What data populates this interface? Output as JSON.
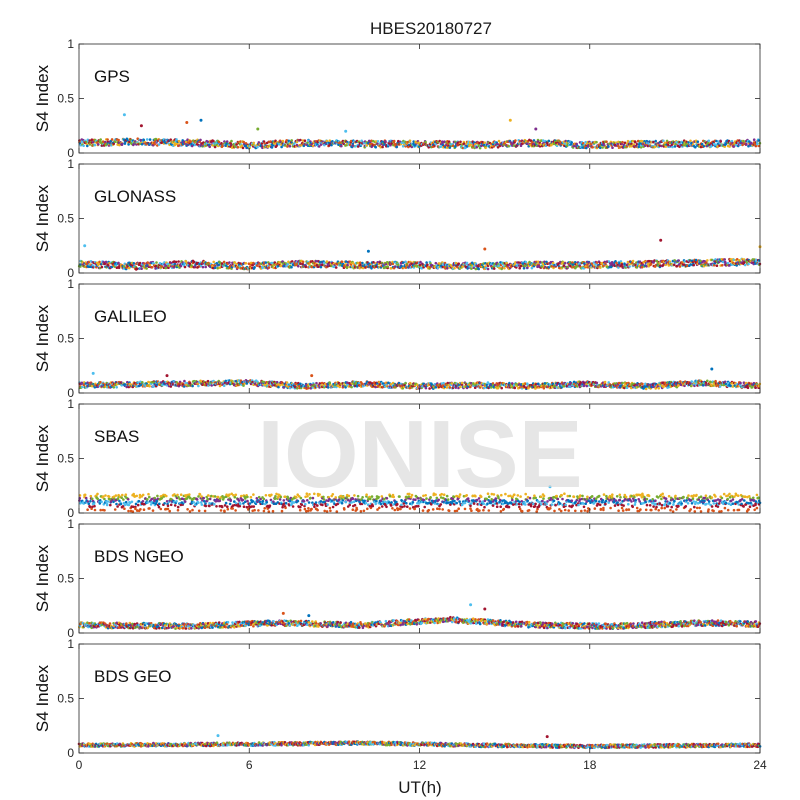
{
  "chart_data": {
    "type": "scatter",
    "title": "HBES20180727",
    "xlabel": "UT(h)",
    "ylabel": "S4 Index",
    "xlim": [
      0,
      24
    ],
    "ylim": [
      0,
      1
    ],
    "x_ticks": [
      "0",
      "6",
      "12",
      "18",
      "24"
    ],
    "y_ticks": [
      "0",
      "0.5",
      "1"
    ],
    "grid": false,
    "watermark": "IONISE",
    "series_colors": [
      "#0072bd",
      "#d95319",
      "#edb120",
      "#7e2f8e",
      "#77ac30",
      "#4dbeee",
      "#a2142f"
    ],
    "panels": [
      {
        "label": "GPS",
        "baseline": [
          [
            0,
            0.09
          ],
          [
            2,
            0.1
          ],
          [
            4,
            0.09
          ],
          [
            6,
            0.07
          ],
          [
            8,
            0.09
          ],
          [
            10,
            0.08
          ],
          [
            12,
            0.08
          ],
          [
            14,
            0.07
          ],
          [
            16,
            0.09
          ],
          [
            18,
            0.07
          ],
          [
            20,
            0.08
          ],
          [
            22,
            0.08
          ],
          [
            24,
            0.09
          ]
        ],
        "spread": 0.06,
        "highlights": [
          [
            1.6,
            0.35
          ],
          [
            2.2,
            0.25
          ],
          [
            4.3,
            0.3
          ],
          [
            3.8,
            0.28
          ],
          [
            15.2,
            0.3
          ],
          [
            16.1,
            0.22
          ],
          [
            6.3,
            0.22
          ],
          [
            9.4,
            0.2
          ]
        ]
      },
      {
        "label": "GLONASS",
        "baseline": [
          [
            0,
            0.08
          ],
          [
            2,
            0.06
          ],
          [
            4,
            0.08
          ],
          [
            6,
            0.06
          ],
          [
            8,
            0.08
          ],
          [
            10,
            0.07
          ],
          [
            12,
            0.07
          ],
          [
            14,
            0.06
          ],
          [
            16,
            0.07
          ],
          [
            18,
            0.07
          ],
          [
            20,
            0.08
          ],
          [
            22,
            0.09
          ],
          [
            24,
            0.1
          ]
        ],
        "spread": 0.06,
        "highlights": [
          [
            0.2,
            0.25
          ],
          [
            20.5,
            0.3
          ],
          [
            10.2,
            0.2
          ],
          [
            14.3,
            0.22
          ],
          [
            24,
            0.24
          ]
        ]
      },
      {
        "label": "GALILEO",
        "baseline": [
          [
            0,
            0.07
          ],
          [
            3,
            0.08
          ],
          [
            6,
            0.09
          ],
          [
            8,
            0.06
          ],
          [
            10,
            0.08
          ],
          [
            12,
            0.06
          ],
          [
            14,
            0.07
          ],
          [
            16,
            0.06
          ],
          [
            18,
            0.08
          ],
          [
            20,
            0.06
          ],
          [
            22,
            0.09
          ],
          [
            24,
            0.06
          ]
        ],
        "spread": 0.05,
        "highlights": [
          [
            0.5,
            0.18
          ],
          [
            3.1,
            0.16
          ],
          [
            22.3,
            0.22
          ],
          [
            8.2,
            0.16
          ]
        ]
      },
      {
        "label": "SBAS",
        "baseline": [
          [
            0,
            0.1
          ],
          [
            6,
            0.1
          ],
          [
            12,
            0.1
          ],
          [
            18,
            0.1
          ],
          [
            24,
            0.1
          ]
        ],
        "spread": 0.06,
        "highlights": [
          [
            16.6,
            0.24
          ]
        ]
      },
      {
        "label": "BDS NGEO",
        "baseline": [
          [
            0,
            0.07
          ],
          [
            4,
            0.06
          ],
          [
            7,
            0.09
          ],
          [
            10,
            0.07
          ],
          [
            13,
            0.12
          ],
          [
            16,
            0.07
          ],
          [
            19,
            0.06
          ],
          [
            22,
            0.09
          ],
          [
            24,
            0.08
          ]
        ],
        "spread": 0.05,
        "highlights": [
          [
            13.8,
            0.26
          ],
          [
            14.3,
            0.22
          ],
          [
            8.1,
            0.16
          ],
          [
            7.2,
            0.18
          ]
        ]
      },
      {
        "label": "BDS GEO",
        "baseline": [
          [
            0,
            0.07
          ],
          [
            6,
            0.08
          ],
          [
            10,
            0.09
          ],
          [
            14,
            0.07
          ],
          [
            18,
            0.06
          ],
          [
            24,
            0.07
          ]
        ],
        "spread": 0.03,
        "highlights": [
          [
            4.9,
            0.16
          ],
          [
            16.5,
            0.15
          ]
        ]
      }
    ]
  }
}
